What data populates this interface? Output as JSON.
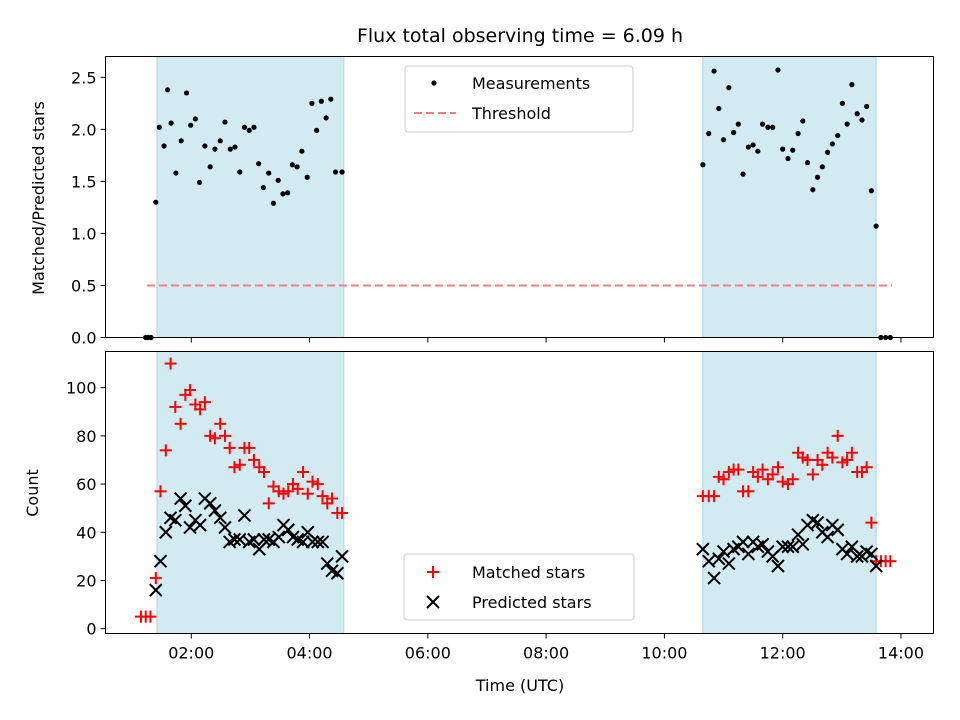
{
  "figure": {
    "title": "Flux total observing time = 6.09 h"
  },
  "colors": {
    "shade": "#add8e6",
    "matched": "#ff0000",
    "predicted": "#000000",
    "threshold": "#f08080",
    "measurement": "#000000"
  },
  "chart_data": [
    {
      "type": "scatter",
      "panel": "top",
      "ylabel": "Matched/Predicted stars",
      "ylim": [
        0,
        2.7
      ],
      "yticks": [
        0.0,
        0.5,
        1.0,
        1.5,
        2.0,
        2.5
      ],
      "ytick_labels": [
        "0.0",
        "0.5",
        "1.0",
        "1.5",
        "2.0",
        "2.5"
      ],
      "xlim_hours": [
        0.55,
        14.55
      ],
      "xticks_hours": [
        2,
        4,
        6,
        8,
        10,
        12,
        14
      ],
      "shaded_intervals_hours": [
        [
          1.42,
          4.58
        ],
        [
          10.65,
          13.58
        ]
      ],
      "legend": {
        "placement": "upper center",
        "entries": [
          "Measurements",
          "Threshold"
        ]
      },
      "threshold": {
        "name": "Threshold",
        "value": 0.5,
        "x_range_hours": [
          1.25,
          13.85
        ]
      },
      "series": [
        {
          "name": "Measurements",
          "marker": "dot",
          "x_hours": [
            1.23,
            1.27,
            1.32,
            1.4,
            1.46,
            1.54,
            1.6,
            1.66,
            1.74,
            1.83,
            1.92,
            1.99,
            2.07,
            2.14,
            2.23,
            2.32,
            2.4,
            2.49,
            2.57,
            2.66,
            2.74,
            2.82,
            2.9,
            2.98,
            3.06,
            3.14,
            3.22,
            3.31,
            3.39,
            3.47,
            3.55,
            3.63,
            3.71,
            3.79,
            3.87,
            3.96,
            4.04,
            4.12,
            4.2,
            4.28,
            4.36,
            4.44,
            4.55,
            10.65,
            10.75,
            10.84,
            10.92,
            11.0,
            11.09,
            11.17,
            11.25,
            11.33,
            11.42,
            11.5,
            11.58,
            11.66,
            11.75,
            11.83,
            11.92,
            12.0,
            12.09,
            12.17,
            12.26,
            12.34,
            12.42,
            12.51,
            12.59,
            12.67,
            12.76,
            12.84,
            12.93,
            13.01,
            13.09,
            13.17,
            13.26,
            13.34,
            13.42,
            13.5,
            13.58,
            13.66,
            13.74,
            13.82
          ],
          "y": [
            0.0,
            0.0,
            0.0,
            1.3,
            2.02,
            1.84,
            2.38,
            2.06,
            1.58,
            1.89,
            2.35,
            2.04,
            2.1,
            1.49,
            1.84,
            1.64,
            1.81,
            1.89,
            2.07,
            1.81,
            1.83,
            1.59,
            2.02,
            1.99,
            2.02,
            1.67,
            1.44,
            1.58,
            1.29,
            1.51,
            1.38,
            1.39,
            1.66,
            1.64,
            1.79,
            1.54,
            2.25,
            1.99,
            2.27,
            2.11,
            2.29,
            1.59,
            1.59,
            1.66,
            1.96,
            2.56,
            2.2,
            1.9,
            2.4,
            1.97,
            2.05,
            1.57,
            1.83,
            1.85,
            1.79,
            2.05,
            2.02,
            2.02,
            2.57,
            1.81,
            1.72,
            1.8,
            1.96,
            2.08,
            1.68,
            1.42,
            1.54,
            1.64,
            1.78,
            1.86,
            1.94,
            2.25,
            2.05,
            2.43,
            2.15,
            2.09,
            2.22,
            1.41,
            1.07,
            0.0,
            0.0,
            0.0
          ]
        }
      ]
    },
    {
      "type": "scatter",
      "panel": "bottom",
      "xlabel": "Time (UTC)",
      "ylabel": "Count",
      "ylim": [
        -2,
        115
      ],
      "yticks": [
        0,
        20,
        40,
        60,
        80,
        100
      ],
      "ytick_labels": [
        "0",
        "20",
        "40",
        "60",
        "80",
        "100"
      ],
      "xlim_hours": [
        0.55,
        14.55
      ],
      "xticks_hours": [
        2,
        4,
        6,
        8,
        10,
        12,
        14
      ],
      "xtick_labels": [
        "02:00",
        "04:00",
        "06:00",
        "08:00",
        "10:00",
        "12:00",
        "14:00"
      ],
      "shaded_intervals_hours": [
        [
          1.42,
          4.58
        ],
        [
          10.65,
          13.58
        ]
      ],
      "legend": {
        "placement": "lower center",
        "entries": [
          "Matched stars",
          "Predicted stars"
        ]
      },
      "series": [
        {
          "name": "Matched stars",
          "marker": "plus",
          "x_hours": [
            1.15,
            1.23,
            1.31,
            1.4,
            1.48,
            1.57,
            1.65,
            1.73,
            1.82,
            1.9,
            1.98,
            2.07,
            2.15,
            2.23,
            2.32,
            2.4,
            2.49,
            2.57,
            2.65,
            2.73,
            2.82,
            2.9,
            2.98,
            3.06,
            3.15,
            3.23,
            3.31,
            3.39,
            3.48,
            3.56,
            3.64,
            3.72,
            3.8,
            3.89,
            3.97,
            4.05,
            4.14,
            4.22,
            4.3,
            4.38,
            4.47,
            4.55,
            10.65,
            10.75,
            10.84,
            10.92,
            11.0,
            11.09,
            11.17,
            11.25,
            11.33,
            11.42,
            11.5,
            11.58,
            11.66,
            11.75,
            11.83,
            11.92,
            12.0,
            12.09,
            12.17,
            12.26,
            12.34,
            12.42,
            12.51,
            12.59,
            12.67,
            12.76,
            12.84,
            12.93,
            13.01,
            13.09,
            13.17,
            13.26,
            13.34,
            13.42,
            13.5,
            13.58,
            13.66,
            13.74,
            13.82
          ],
          "y": [
            5,
            5,
            5,
            21,
            57,
            74,
            110,
            92,
            85,
            97,
            99,
            93,
            91,
            94,
            80,
            79,
            85,
            80,
            75,
            67,
            68,
            75,
            75,
            70,
            67,
            65,
            52,
            59,
            57,
            56,
            57,
            60,
            58,
            65,
            56,
            61,
            60,
            55,
            52,
            54,
            48,
            48,
            55,
            55,
            55,
            63,
            62,
            65,
            66,
            66,
            57,
            57,
            65,
            63,
            66,
            62,
            64,
            67,
            61,
            60,
            62,
            73,
            71,
            70,
            64,
            70,
            68,
            73,
            71,
            80,
            69,
            70,
            73,
            65,
            65,
            67,
            44,
            28,
            28,
            28,
            28
          ]
        },
        {
          "name": "Predicted stars",
          "marker": "x",
          "x_hours": [
            1.4,
            1.48,
            1.57,
            1.65,
            1.73,
            1.82,
            1.9,
            1.98,
            2.07,
            2.15,
            2.23,
            2.32,
            2.4,
            2.49,
            2.57,
            2.65,
            2.73,
            2.82,
            2.9,
            2.98,
            3.06,
            3.15,
            3.23,
            3.31,
            3.39,
            3.48,
            3.56,
            3.64,
            3.72,
            3.8,
            3.89,
            3.97,
            4.05,
            4.14,
            4.22,
            4.3,
            4.38,
            4.47,
            4.55,
            10.65,
            10.75,
            10.84,
            10.92,
            11.0,
            11.09,
            11.17,
            11.25,
            11.33,
            11.42,
            11.5,
            11.58,
            11.66,
            11.75,
            11.83,
            11.92,
            12.0,
            12.09,
            12.17,
            12.26,
            12.34,
            12.42,
            12.51,
            12.59,
            12.67,
            12.76,
            12.84,
            12.93,
            13.01,
            13.09,
            13.17,
            13.26,
            13.34,
            13.42,
            13.5,
            13.58
          ],
          "y": [
            16,
            28,
            40,
            46,
            45,
            54,
            51,
            42,
            45,
            43,
            54,
            52,
            49,
            46,
            42,
            36,
            37,
            37,
            47,
            36,
            37,
            33,
            37,
            37,
            36,
            38,
            43,
            41,
            38,
            37,
            36,
            40,
            36,
            36,
            36,
            27,
            24,
            23,
            30,
            33,
            28,
            21,
            29,
            32,
            27,
            33,
            34,
            36,
            31,
            36,
            34,
            35,
            32,
            30,
            26,
            34,
            34,
            34,
            39,
            35,
            43,
            45,
            44,
            40,
            38,
            43,
            41,
            33,
            31,
            34,
            30,
            30,
            32,
            31,
            26
          ]
        }
      ]
    }
  ]
}
